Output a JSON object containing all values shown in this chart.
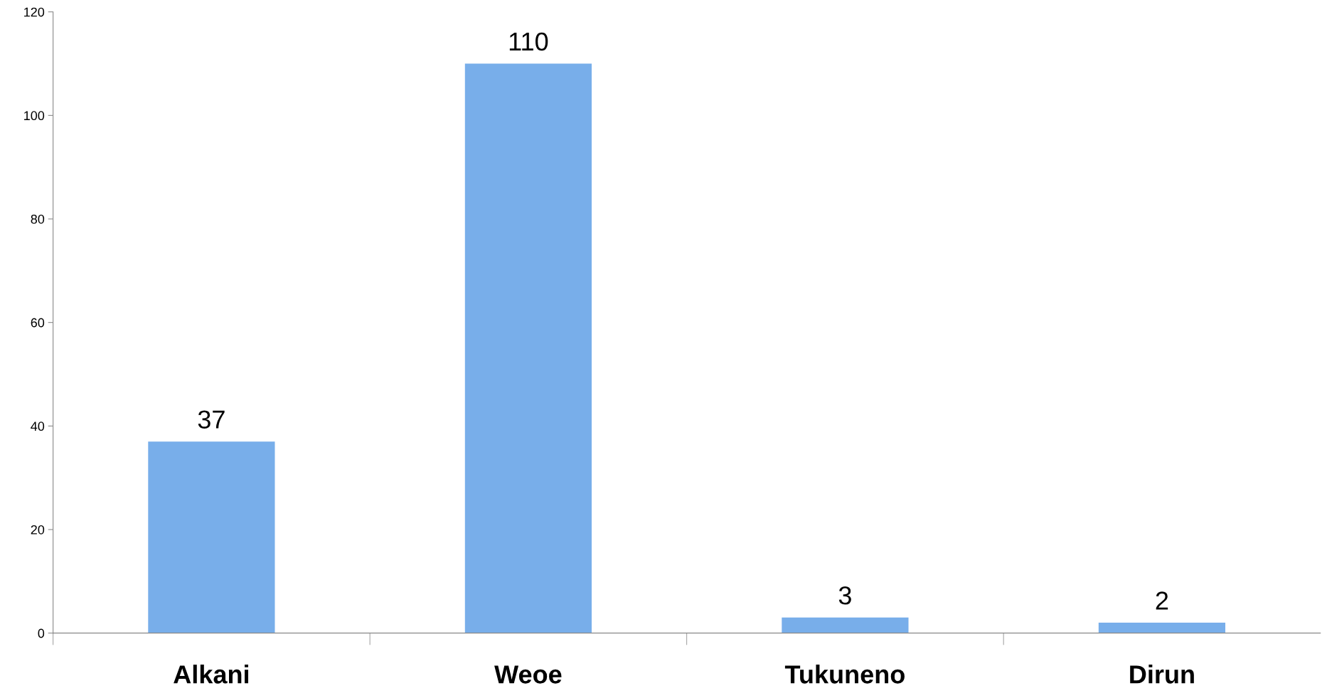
{
  "chart_data": {
    "type": "bar",
    "categories": [
      "Alkani",
      "Weoe",
      "Tukuneno",
      "Dirun"
    ],
    "values": [
      37,
      110,
      3,
      2
    ],
    "color": "#78aeea",
    "ylim": [
      0,
      120
    ],
    "yticks": [
      0,
      20,
      40,
      60,
      80,
      100,
      120
    ],
    "data_labels": true,
    "grid": false,
    "legend": false
  }
}
